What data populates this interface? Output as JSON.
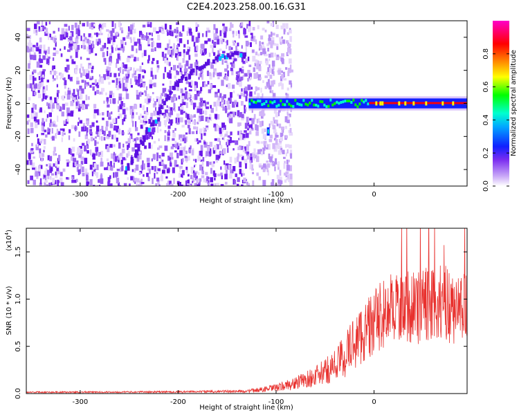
{
  "figure": {
    "title": "C2E4.2023.258.00.16.G31"
  },
  "colors": {
    "snr_line": "#e8312e",
    "background_speckle": "#7a2cf0",
    "ridge": "#5a10e0",
    "colormap": [
      "#ffffff",
      "#c9a8f7",
      "#7a2cf0",
      "#1020ff",
      "#00a8ff",
      "#00ffd0",
      "#00ff00",
      "#ffff00",
      "#ff8000",
      "#ff0000",
      "#ff00c8"
    ]
  },
  "chart_data": [
    {
      "id": "spectrogram",
      "type": "heatmap",
      "title": "",
      "xlabel": "Height of straight line (km)",
      "ylabel": "Frequency (Hz)",
      "xlim": [
        -355,
        95
      ],
      "ylim": [
        -50,
        50
      ],
      "x_ticks": [
        -300,
        -200,
        -100,
        0
      ],
      "x_tick_labels": [
        "-300",
        "-200",
        "-100",
        "0"
      ],
      "y_ticks": [
        -40,
        -20,
        0,
        20,
        40
      ],
      "y_tick_labels": [
        "-40",
        "-20",
        "0",
        "20",
        "40"
      ],
      "colorbar": {
        "label": "Normalized spectral amplitude",
        "range": [
          0,
          1
        ],
        "ticks": [
          0.0,
          0.2,
          0.4,
          0.6,
          0.8
        ],
        "tick_labels": [
          "0.0",
          "0.2",
          "0.4",
          "0.6",
          "0.8"
        ]
      },
      "features": {
        "noise_region_x": [
          -355,
          -105
        ],
        "carrier_band": {
          "x": [
            -128,
            95
          ],
          "frequency_hz": 0,
          "half_width_hz": 3
        },
        "ridge_points": [
          [
            -255,
            -42
          ],
          [
            -240,
            -25
          ],
          [
            -225,
            -10
          ],
          [
            -205,
            10
          ],
          [
            -185,
            20
          ],
          [
            -160,
            28
          ],
          [
            -130,
            30
          ]
        ],
        "lower_spot": {
          "x": -108,
          "frequency_hz": -17
        }
      }
    },
    {
      "id": "snr",
      "type": "line",
      "title": "",
      "xlabel": "Height of straight line (km)",
      "ylabel": "SNR (10 * v/v)",
      "exponent_label": "(x10",
      "exponent_power": "4",
      "xlim": [
        -355,
        95
      ],
      "ylim": [
        0,
        17500
      ],
      "x_ticks": [
        -300,
        -200,
        -100,
        0
      ],
      "x_tick_labels": [
        "-300",
        "-200",
        "-100",
        "0"
      ],
      "y_ticks": [
        0,
        5000,
        10000,
        15000
      ],
      "y_tick_labels": [
        "0.0",
        "0.5",
        "1.0",
        "1.5"
      ],
      "envelope": {
        "x": [
          -355,
          -300,
          -200,
          -130,
          -100,
          -80,
          -60,
          -50,
          -40,
          -30,
          -20,
          -10,
          0,
          10,
          20,
          30,
          40,
          50,
          60,
          70,
          80,
          95
        ],
        "y_mean": [
          150,
          150,
          180,
          250,
          600,
          1100,
          1800,
          2300,
          3000,
          4000,
          5500,
          6500,
          7500,
          8500,
          9200,
          9500,
          9000,
          9300,
          9700,
          9500,
          9200,
          9000
        ],
        "y_spread": [
          80,
          80,
          100,
          150,
          400,
          700,
          1100,
          1400,
          1800,
          2400,
          3000,
          3300,
          3500,
          3700,
          3800,
          3900,
          3900,
          4000,
          4200,
          4200,
          4000,
          3800
        ]
      }
    }
  ]
}
